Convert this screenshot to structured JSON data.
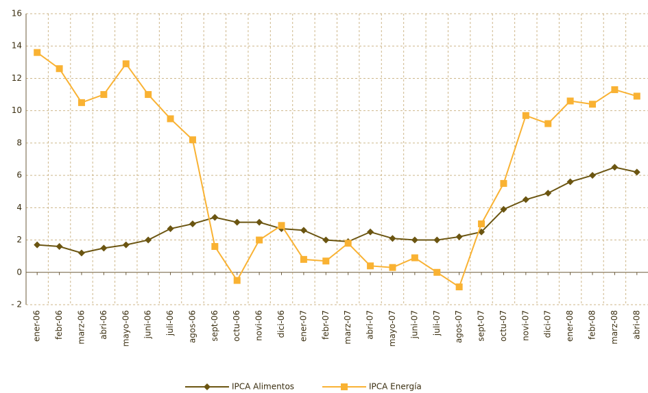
{
  "chart_data": {
    "type": "line",
    "categories": [
      "ener-06",
      "febr-06",
      "marz-06",
      "abri-06",
      "mayo-06",
      "juni-06",
      "juli-06",
      "agos-06",
      "sept-06",
      "octu-06",
      "novi-06",
      "dici-06",
      "ener-07",
      "febr-07",
      "marz-07",
      "abri-07",
      "mayo-07",
      "juni-07",
      "juli-07",
      "agos-07",
      "sept-07",
      "octu-07",
      "novi-07",
      "dici-07",
      "ener-08",
      "febr-08",
      "marz-08",
      "abri-08"
    ],
    "series": [
      {
        "name": "IPCA Alimentos",
        "color": "#6b5511",
        "marker": "diamond",
        "values": [
          1.7,
          1.6,
          1.2,
          1.5,
          1.7,
          2.0,
          2.7,
          3.0,
          3.4,
          3.1,
          3.1,
          2.7,
          2.6,
          2.0,
          1.9,
          2.5,
          2.1,
          2.0,
          2.0,
          2.2,
          2.5,
          3.9,
          4.5,
          4.9,
          5.6,
          6.0,
          6.5,
          6.2
        ]
      },
      {
        "name": "IPCA Energía",
        "color": "#f9b233",
        "marker": "square",
        "values": [
          13.6,
          12.6,
          10.5,
          11.0,
          12.9,
          11.0,
          9.5,
          8.2,
          1.6,
          -0.5,
          2.0,
          2.9,
          0.8,
          0.7,
          1.8,
          0.4,
          0.3,
          0.9,
          0.0,
          -0.9,
          3.0,
          5.5,
          9.7,
          9.2,
          10.6,
          10.4,
          11.3,
          10.9
        ]
      }
    ],
    "ylim": [
      -2,
      16
    ],
    "yticks": [
      {
        "value": -2,
        "label": "- 2"
      },
      0,
      2,
      4,
      6,
      8,
      10,
      12,
      14,
      16
    ],
    "grid": true,
    "legend": "bottom"
  }
}
